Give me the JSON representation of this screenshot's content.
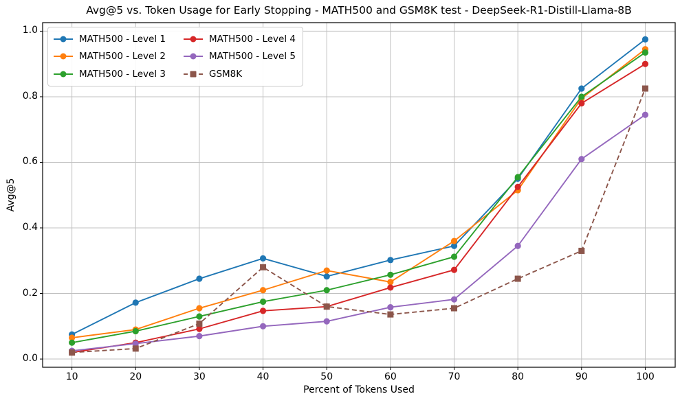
{
  "title": "Avg@5 vs. Token Usage for Early Stopping - MATH500 and GSM8K test - DeepSeek-R1-Distill-Llama-8B",
  "chart_data": {
    "type": "line",
    "title": "Avg@5 vs. Token Usage for Early Stopping - MATH500 and GSM8K test - DeepSeek-R1-Distill-Llama-8B",
    "xlabel": "Percent of Tokens Used",
    "ylabel": "Avg@5",
    "x": [
      10,
      20,
      30,
      40,
      50,
      60,
      70,
      80,
      90,
      100
    ],
    "xticks": [
      10,
      20,
      30,
      40,
      50,
      60,
      70,
      80,
      90,
      100
    ],
    "yticks": [
      0.0,
      0.2,
      0.4,
      0.6,
      0.8,
      1.0
    ],
    "xlim": [
      5.4,
      104.7
    ],
    "ylim": [
      -0.025,
      1.026
    ],
    "grid": true,
    "legend_position": "upper left",
    "legend_columns": 2,
    "series": [
      {
        "name": "MATH500 - Level 1",
        "color": "#1f77b4",
        "marker": "circle",
        "dash": "solid",
        "values": [
          0.075,
          0.172,
          0.245,
          0.307,
          0.252,
          0.302,
          0.345,
          0.55,
          0.825,
          0.975
        ]
      },
      {
        "name": "MATH500 - Level 2",
        "color": "#ff7f0e",
        "marker": "circle",
        "dash": "solid",
        "values": [
          0.065,
          0.09,
          0.155,
          0.21,
          0.27,
          0.235,
          0.36,
          0.515,
          0.795,
          0.945
        ]
      },
      {
        "name": "MATH500 - Level 3",
        "color": "#2ca02c",
        "marker": "circle",
        "dash": "solid",
        "values": [
          0.05,
          0.085,
          0.13,
          0.175,
          0.21,
          0.257,
          0.312,
          0.555,
          0.8,
          0.935
        ]
      },
      {
        "name": "MATH500 - Level 4",
        "color": "#d62728",
        "marker": "circle",
        "dash": "solid",
        "values": [
          0.02,
          0.05,
          0.092,
          0.147,
          0.16,
          0.218,
          0.272,
          0.525,
          0.78,
          0.9
        ]
      },
      {
        "name": "MATH500 - Level 5",
        "color": "#9467bd",
        "marker": "circle",
        "dash": "solid",
        "values": [
          0.025,
          0.047,
          0.07,
          0.1,
          0.115,
          0.158,
          0.182,
          0.345,
          0.61,
          0.745
        ]
      },
      {
        "name": "GSM8K",
        "color": "#8c564b",
        "marker": "square",
        "dash": "dashed",
        "values": [
          0.02,
          0.032,
          0.108,
          0.28,
          0.16,
          0.136,
          0.155,
          0.245,
          0.33,
          0.825
        ]
      }
    ],
    "style": {
      "grid_color": "#c0c0c0",
      "spine_color": "#000000",
      "background": "#ffffff"
    }
  }
}
